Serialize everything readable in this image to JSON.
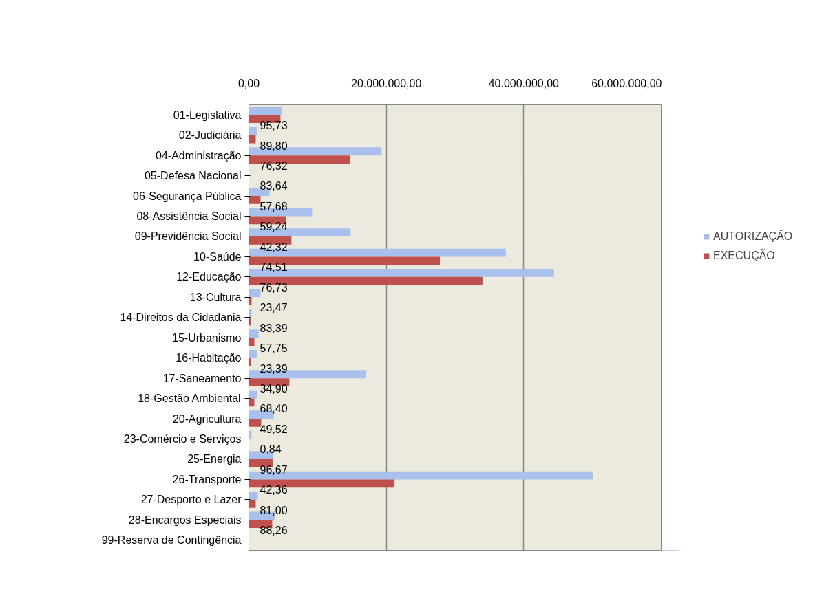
{
  "chart_data": {
    "type": "bar",
    "orientation": "horizontal",
    "categories": [
      "01-Legislativa",
      "02-Judiciária",
      "04-Administração",
      "05-Defesa Nacional",
      "06-Segurança Pública",
      "08-Assistência Social",
      "09-Previdência Social",
      "10-Saúde",
      "12-Educação",
      "13-Cultura",
      "14-Direitos da Cidadania",
      "15-Urbanismo",
      "16-Habitação",
      "17-Saneamento",
      "18-Gestão Ambiental",
      "20-Agricultura",
      "23-Comércio e Serviços",
      "25-Energia",
      "26-Transporte",
      "27-Desporto e Lazer",
      "28-Encargos Especiais",
      "99-Reserva de Contingência"
    ],
    "series": [
      {
        "name": "AUTORIZAÇÃO",
        "color": "#a9c0ec",
        "values": [
          4800000,
          1200000,
          19300000,
          0,
          3000000,
          9200000,
          14800000,
          37400000,
          44400000,
          1700000,
          400000,
          1400000,
          1200000,
          17000000,
          1200000,
          3600000,
          400000,
          3600000,
          50100000,
          1300000,
          3800000,
          0
        ]
      },
      {
        "name": "EXECUÇÃO",
        "color": "#c0504d",
        "values": [
          4600000,
          1000000,
          14700000,
          0,
          1700000,
          5400000,
          6200000,
          27800000,
          34000000,
          400000,
          300000,
          800000,
          300000,
          5900000,
          800000,
          1800000,
          0,
          3500000,
          21200000,
          1000000,
          3400000,
          0
        ]
      }
    ],
    "annotations": [
      "95,73",
      "89,80",
      "76,32",
      "83,64",
      "57,68",
      "59,24",
      "42,32",
      "74,51",
      "76,73",
      "23,47",
      "83,39",
      "57,75",
      "23,39",
      "34,90",
      "68,40",
      "49,52",
      "0,84",
      "96,67",
      "42,36",
      "81,00",
      "88,26"
    ],
    "xlim": [
      0,
      60000000
    ],
    "xticks": [
      {
        "value": 0,
        "label": "0,00"
      },
      {
        "value": 20000000,
        "label": "20.000.000,00"
      },
      {
        "value": 40000000,
        "label": "40.000.000,00"
      },
      {
        "value": 60000000,
        "label": "60.000.000,00"
      }
    ],
    "grid": "x",
    "legend": "right"
  }
}
